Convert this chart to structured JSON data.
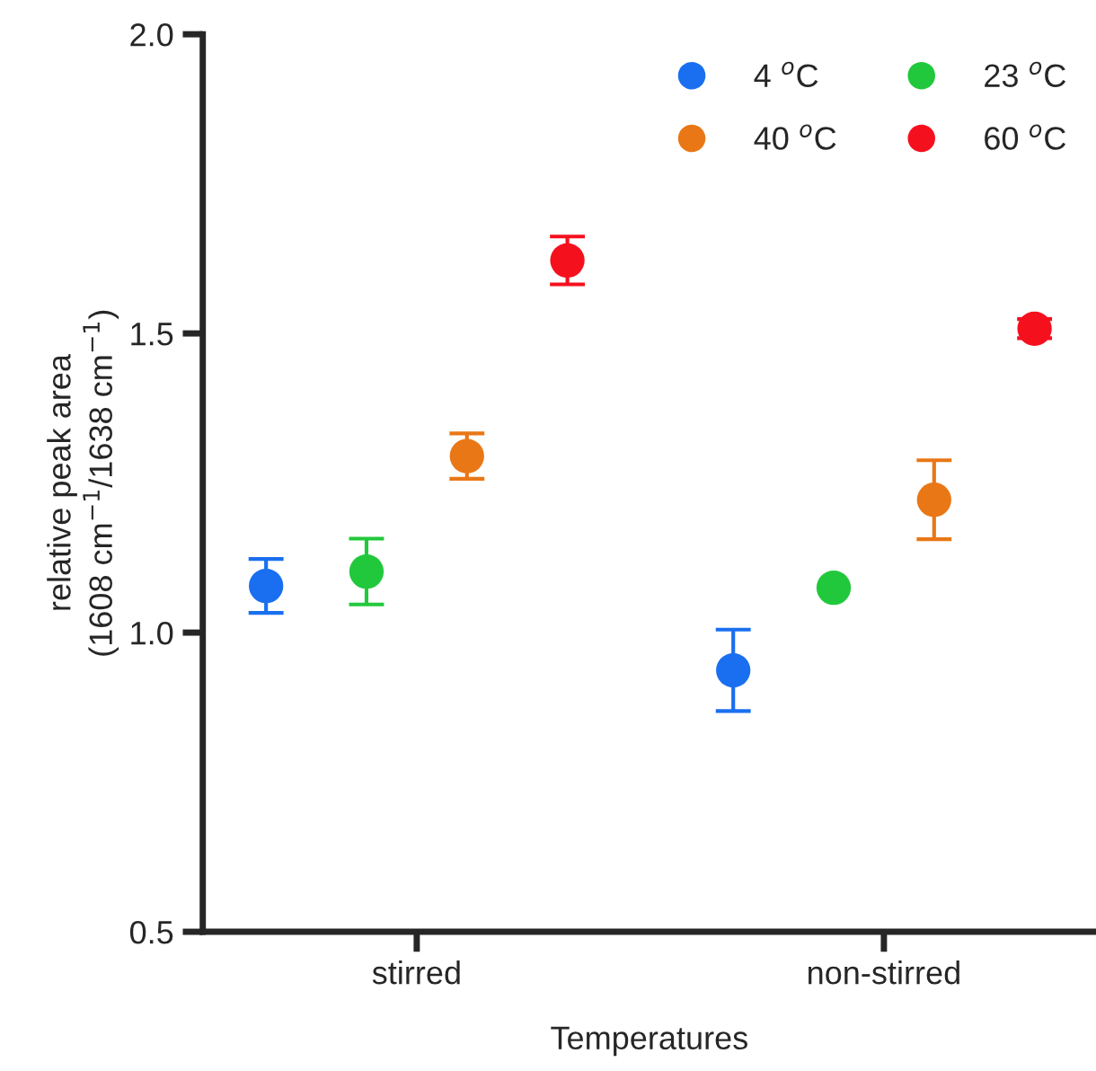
{
  "chart_data": {
    "type": "scatter",
    "xlabel": "Temperatures",
    "ylabel": "relative peak area\n(1608 cm$^{−1}$/1638 cm$^{−1}$)",
    "categories": [
      "stirred",
      "non-stirred"
    ],
    "series": [
      {
        "name": "4 $^{o}$C",
        "color": "#1a6ff0",
        "values": [
          1.078,
          0.937
        ],
        "errors": [
          0.045,
          0.068
        ]
      },
      {
        "name": "23 $^{o}$C",
        "color": "#22c83c",
        "values": [
          1.102,
          1.075
        ],
        "errors": [
          0.055,
          null
        ]
      },
      {
        "name": "40 $^{o}$C",
        "color": "#e97716",
        "values": [
          1.295,
          1.222
        ],
        "errors": [
          0.038,
          0.066
        ]
      },
      {
        "name": "60 $^{o}$C",
        "color": "#f5101e",
        "values": [
          1.622,
          1.508
        ],
        "errors": [
          0.04,
          0.016
        ]
      }
    ],
    "ylim": [
      0.5,
      2.0
    ],
    "yticks": [
      0.5,
      {
        "value": 1,
        "label": "1.0"
      },
      1.5,
      {
        "value": 2,
        "label": "2.0"
      }
    ],
    "grid": false,
    "legend": "top right",
    "marker": "circle"
  }
}
